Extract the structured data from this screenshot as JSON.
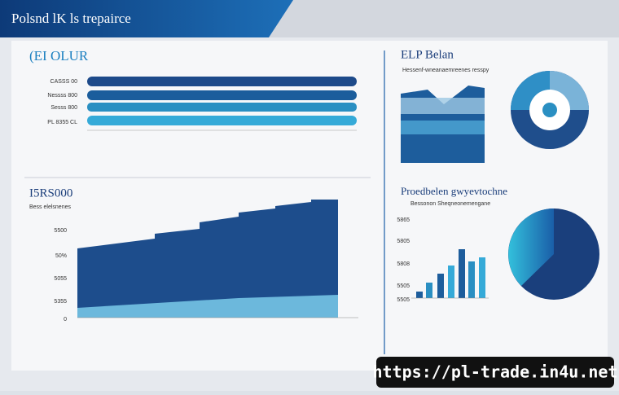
{
  "header": {
    "title": "Polsnd lK ls trepairce"
  },
  "panel_left_top": {
    "title": "(EI OLUR",
    "labels": [
      "CASSS 00",
      "Nessss 800",
      "Sesss 800",
      "PL 8355 CL"
    ]
  },
  "panel_left_bottom": {
    "title": "I5RS000",
    "subtitle": "Bess elelsnenes",
    "axis_labels": [
      "5500",
      "50%",
      "5055",
      "5355",
      "0"
    ]
  },
  "panel_right_top": {
    "title": "ELP Belan",
    "subtitle": "Hessenf-wneanaemreenes resspy"
  },
  "panel_right_middle": {
    "title": "Proedbelen gwyevtochne",
    "subtitle": "Bessonon Sheqneonemengane",
    "axis_labels": [
      "5865",
      "5805",
      "5808",
      "5505",
      "5505"
    ]
  },
  "watermark": {
    "text": "https://pl-trade.in4u.net"
  }
}
